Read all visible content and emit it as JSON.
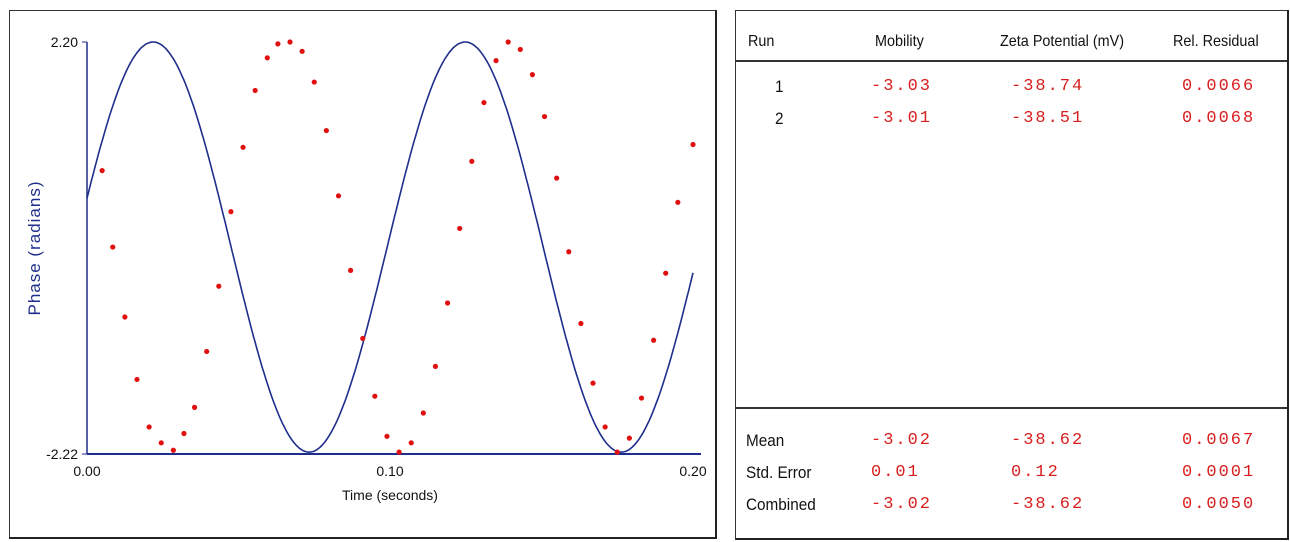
{
  "chart_data": {
    "type": "line",
    "ylabel": "Phase (radians)",
    "xlabel": "Time (seconds)",
    "xlim": [
      0,
      0.2
    ],
    "ylim": [
      -2.22,
      2.2
    ],
    "x_ticks": [
      "0.00",
      "0.10",
      "0.20"
    ],
    "y_ticks": [
      "2.20",
      "-2.22"
    ],
    "fit": {
      "amplitude": 2.2,
      "period": 0.103,
      "phase_offset_rad": 0.24,
      "offset": 0.0
    },
    "series": [
      {
        "type": "line",
        "color": "#1f2e8c"
      },
      {
        "type": "scatter",
        "color": "#e01010",
        "x": [
          0.005,
          0.0085,
          0.0125,
          0.0165,
          0.0205,
          0.0245,
          0.0285,
          0.032,
          0.0355,
          0.0395,
          0.0435,
          0.0475,
          0.0515,
          0.0555,
          0.0595,
          0.063,
          0.067,
          0.071,
          0.075,
          0.079,
          0.083,
          0.087,
          0.091,
          0.095,
          0.099,
          0.103,
          0.107,
          0.111,
          0.115,
          0.119,
          0.123,
          0.127,
          0.131,
          0.135,
          0.139,
          0.143,
          0.147,
          0.151,
          0.155,
          0.159,
          0.163,
          0.167,
          0.171,
          0.175,
          0.179,
          0.183,
          0.187,
          0.191,
          0.195,
          0.2
        ],
        "y": [
          0.82,
          0.0,
          -0.75,
          -1.42,
          -1.93,
          -2.1,
          -2.18,
          -2.0,
          -1.72,
          -1.12,
          -0.42,
          0.38,
          1.07,
          1.68,
          2.03,
          2.18,
          2.2,
          2.1,
          1.77,
          1.25,
          0.55,
          -0.25,
          -0.98,
          -1.6,
          -2.03,
          -2.2,
          -2.1,
          -1.78,
          -1.28,
          -0.6,
          0.2,
          0.92,
          1.55,
          2.0,
          2.2,
          2.12,
          1.85,
          1.4,
          0.74,
          -0.05,
          -0.82,
          -1.46,
          -1.93,
          -2.2,
          -2.05,
          -1.62,
          -1.0,
          -0.28,
          0.48,
          1.1
        ]
      }
    ]
  },
  "results": {
    "headers": {
      "run": "Run",
      "mobility": "Mobility",
      "zeta": "Zeta Potential (mV)",
      "residual": "Rel. Residual"
    },
    "runs": [
      {
        "run": "1",
        "mobility": "-3.03",
        "zeta": "-38.74",
        "residual": "0.0066"
      },
      {
        "run": "2",
        "mobility": "-3.01",
        "zeta": "-38.51",
        "residual": "0.0068"
      }
    ],
    "summary": [
      {
        "label": "Mean",
        "mobility": "-3.02",
        "zeta": "-38.62",
        "residual": "0.0067"
      },
      {
        "label": "Std. Error",
        "mobility": "0.01",
        "zeta": "0.12",
        "residual": "0.0001"
      },
      {
        "label": "Combined",
        "mobility": "-3.02",
        "zeta": "-38.62",
        "residual": "0.0050"
      }
    ]
  },
  "colors": {
    "axis": "#1f2e8c",
    "fit_line": "#1f2e8c",
    "points": "#e01010",
    "values_text": "#d81e1e"
  }
}
